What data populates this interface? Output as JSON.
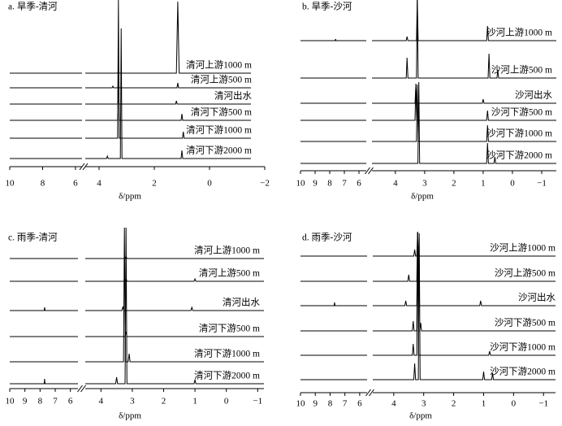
{
  "chart_data": [
    {
      "type": "line",
      "title": "a. 旱季-清河",
      "xlabel": "δ/ppm",
      "color": "#000000",
      "segments": [
        {
          "xlim": [
            10,
            5.6
          ],
          "xticks": [
            10,
            8,
            6
          ]
        },
        {
          "xlim": [
            4.5,
            -2
          ],
          "xticks": [
            4,
            2,
            0,
            {
              "value": -2,
              "label": "−2"
            }
          ]
        }
      ],
      "series": [
        {
          "name": "清河上游1000 m",
          "x": [
            10,
            5.6,
            5.0,
            4.5,
            3.33,
            3.3,
            3.27,
            1.2,
            1.15,
            1.1,
            -1.5
          ],
          "values": [
            0,
            0,
            null,
            0,
            0,
            3,
            0,
            0,
            88,
            0,
            0
          ]
        },
        {
          "name": "清河上游500 m",
          "x": [
            10,
            5.6,
            5.0,
            4.5,
            3.53,
            3.5,
            3.47,
            3.33,
            3.3,
            3.27,
            1.18,
            1.15,
            1.12,
            -1.5
          ],
          "values": [
            0,
            0,
            null,
            0,
            0,
            2,
            0,
            0,
            4,
            0,
            0,
            6,
            0,
            0
          ]
        },
        {
          "name": "清河出水",
          "x": [
            10,
            5.6,
            5.0,
            4.5,
            3.33,
            3.3,
            3.27,
            1.23,
            1.2,
            1.17,
            -1.5
          ],
          "values": [
            0,
            0,
            null,
            0,
            0,
            3,
            0,
            0,
            4,
            0,
            0
          ]
        },
        {
          "name": "清河下游500 m",
          "x": [
            10,
            5.6,
            5.0,
            4.5,
            3.33,
            3.3,
            3.27,
            1.03,
            1.0,
            0.97,
            -1.5
          ],
          "values": [
            0,
            0,
            null,
            0,
            0,
            65,
            0,
            0,
            8,
            0,
            0
          ]
        },
        {
          "name": "清河下游1000 m",
          "x": [
            10,
            5.6,
            5.0,
            4.5,
            3.33,
            3.3,
            3.27,
            0.98,
            0.95,
            0.92,
            -1.5
          ],
          "values": [
            0,
            0,
            null,
            0,
            0,
            170,
            0,
            0,
            8,
            0,
            0
          ]
        },
        {
          "name": "清河下游2000 m",
          "x": [
            10,
            5.6,
            5.0,
            4.5,
            3.73,
            3.7,
            3.67,
            3.23,
            3.2,
            3.17,
            1.03,
            1.0,
            0.97,
            -1.5
          ],
          "values": [
            0,
            0,
            null,
            0,
            0,
            3,
            0,
            0,
            160,
            0,
            0,
            10,
            0,
            0
          ]
        }
      ]
    },
    {
      "type": "line",
      "title": "b. 旱季-沙河",
      "xlabel": "δ/ppm",
      "color": "#000000",
      "segments": [
        {
          "xlim": [
            10,
            5.5
          ],
          "xticks": [
            10,
            9,
            8,
            7,
            6
          ]
        },
        {
          "xlim": [
            4.8,
            -1.5
          ],
          "xticks": [
            4,
            3,
            2,
            1,
            0,
            {
              "value": -1,
              "label": "−1"
            }
          ]
        }
      ],
      "series": [
        {
          "name": "沙河上游1000 m",
          "x": [
            10,
            7.63,
            7.6,
            7.57,
            5.5,
            5.2,
            4.8,
            3.63,
            3.6,
            3.57,
            3.28,
            3.25,
            3.22,
            0.88,
            0.85,
            0.82,
            -1.5
          ],
          "values": [
            0,
            0,
            2,
            0,
            0,
            null,
            0,
            0,
            5,
            0,
            0,
            50,
            0,
            0,
            18,
            0,
            0
          ]
        },
        {
          "name": "沙河上游500 m",
          "x": [
            10,
            5.5,
            5.2,
            4.8,
            3.63,
            3.6,
            3.57,
            3.28,
            3.25,
            3.22,
            0.83,
            0.8,
            0.77,
            0.53,
            0.5,
            0.47,
            -1.5
          ],
          "values": [
            0,
            0,
            null,
            0,
            0,
            25,
            0,
            0,
            96,
            0,
            0,
            30,
            0,
            0,
            10,
            0,
            0
          ]
        },
        {
          "name": "沙河出水",
          "x": [
            10,
            5.5,
            5.2,
            4.8,
            3.33,
            3.3,
            3.27,
            1.03,
            1.0,
            0.97,
            -1.5
          ],
          "values": [
            0,
            0,
            null,
            0,
            0,
            20,
            0,
            0,
            5,
            0,
            0
          ]
        },
        {
          "name": "沙河下游500 m",
          "x": [
            10,
            5.5,
            5.2,
            4.8,
            3.33,
            3.3,
            3.27,
            0.88,
            0.85,
            0.82,
            -1.5
          ],
          "values": [
            0,
            0,
            null,
            0,
            0,
            45,
            0,
            0,
            12,
            0,
            0
          ]
        },
        {
          "name": "沙河下游1000 m",
          "x": [
            10,
            5.5,
            5.2,
            4.8,
            3.28,
            3.25,
            3.22,
            0.88,
            0.85,
            0.82,
            -1.5
          ],
          "values": [
            0,
            0,
            null,
            0,
            0,
            70,
            0,
            0,
            20,
            0,
            0
          ]
        },
        {
          "name": "沙河下游2000 m",
          "x": [
            10,
            5.5,
            5.2,
            4.8,
            3.23,
            3.2,
            3.17,
            0.88,
            0.85,
            0.82,
            0.63,
            0.6,
            0.57,
            -1.5
          ],
          "values": [
            0,
            0,
            null,
            0,
            0,
            100,
            0,
            0,
            25,
            0,
            0,
            8,
            0,
            0
          ]
        }
      ]
    },
    {
      "type": "line",
      "title": "c. 雨季-清河",
      "xlabel": "δ/ppm",
      "color": "#000000",
      "segments": [
        {
          "xlim": [
            10,
            5.5
          ],
          "xticks": [
            10,
            9,
            8,
            7,
            6
          ]
        },
        {
          "xlim": [
            4.5,
            -1.2
          ],
          "xticks": [
            4,
            3,
            2,
            1,
            0,
            {
              "value": -1,
              "label": "−1"
            }
          ]
        }
      ],
      "series": [
        {
          "name": "清河上游1000 m",
          "x": [
            10,
            5.5,
            5.0,
            4.5,
            3.23,
            3.2,
            3.17,
            -1.2
          ],
          "values": [
            0,
            0,
            null,
            0,
            0,
            3,
            0,
            0
          ]
        },
        {
          "name": "清河上游500 m",
          "x": [
            10,
            5.5,
            5.0,
            4.5,
            3.23,
            3.2,
            3.17,
            1.03,
            1.0,
            0.97,
            -1.2
          ],
          "values": [
            0,
            0,
            null,
            0,
            0,
            4,
            0,
            0,
            3,
            0,
            0
          ]
        },
        {
          "name": "清河出水",
          "x": [
            10,
            7.73,
            7.7,
            7.67,
            5.5,
            5.0,
            4.5,
            3.33,
            3.3,
            3.27,
            1.13,
            1.1,
            1.07,
            -1.2
          ],
          "values": [
            0,
            0,
            4,
            0,
            0,
            null,
            0,
            0,
            5,
            0,
            0,
            4,
            0,
            0
          ]
        },
        {
          "name": "清河下游500 m",
          "x": [
            10,
            5.5,
            5.0,
            4.5,
            3.23,
            3.2,
            3.17,
            -1.2
          ],
          "values": [
            0,
            0,
            null,
            0,
            0,
            6,
            0,
            0
          ]
        },
        {
          "name": "清河下游1000 m",
          "x": [
            10,
            5.5,
            5.0,
            4.5,
            3.28,
            3.25,
            3.22,
            3.13,
            3.1,
            3.07,
            -1.2
          ],
          "values": [
            0,
            0,
            null,
            0,
            0,
            165,
            0,
            0,
            10,
            0,
            0
          ]
        },
        {
          "name": "清河下游2000 m",
          "x": [
            10,
            7.73,
            7.7,
            7.67,
            5.5,
            5.0,
            4.5,
            3.53,
            3.5,
            3.47,
            3.23,
            3.2,
            3.17,
            1.03,
            1.0,
            0.97,
            -1.2
          ],
          "values": [
            0,
            0,
            6,
            0,
            0,
            null,
            0,
            0,
            8,
            0,
            0,
            192,
            0,
            0,
            5,
            0,
            0
          ]
        }
      ]
    },
    {
      "type": "line",
      "title": "d. 雨季-沙河",
      "xlabel": "δ/ppm",
      "color": "#000000",
      "segments": [
        {
          "xlim": [
            10,
            5.5
          ],
          "xticks": [
            10,
            9,
            8,
            7,
            6
          ]
        },
        {
          "xlim": [
            4.7,
            -1.4
          ],
          "xticks": [
            4,
            3,
            2,
            1,
            0,
            {
              "value": -1,
              "label": "−1"
            }
          ]
        }
      ],
      "series": [
        {
          "name": "沙河上游1000 m",
          "x": [
            10,
            5.5,
            5.1,
            4.7,
            3.33,
            3.3,
            3.27,
            3.23,
            3.2,
            3.17,
            -1.4
          ],
          "values": [
            0,
            0,
            null,
            0,
            0,
            8,
            0,
            0,
            30,
            0,
            0
          ]
        },
        {
          "name": "沙河上游500 m",
          "x": [
            10,
            5.5,
            5.1,
            4.7,
            3.53,
            3.5,
            3.47,
            3.23,
            3.2,
            3.17,
            -1.4
          ],
          "values": [
            0,
            0,
            null,
            0,
            0,
            8,
            0,
            0,
            60,
            0,
            0
          ]
        },
        {
          "name": "沙河出水",
          "x": [
            10,
            7.73,
            7.7,
            7.67,
            5.5,
            5.1,
            4.7,
            3.63,
            3.6,
            3.57,
            3.23,
            3.2,
            3.17,
            1.13,
            1.1,
            1.07,
            -1.4
          ],
          "values": [
            0,
            0,
            4,
            0,
            0,
            null,
            0,
            0,
            6,
            0,
            0,
            90,
            0,
            0,
            6,
            0,
            0
          ]
        },
        {
          "name": "沙河下游500 m",
          "x": [
            10,
            5.5,
            5.1,
            4.7,
            3.38,
            3.35,
            3.32,
            3.23,
            3.2,
            3.17,
            3.13,
            3.1,
            3.07,
            -1.4
          ],
          "values": [
            0,
            0,
            null,
            0,
            0,
            12,
            0,
            0,
            120,
            0,
            0,
            10,
            0,
            0
          ]
        },
        {
          "name": "沙河下游1000 m",
          "x": [
            10,
            5.5,
            5.1,
            4.7,
            3.38,
            3.35,
            3.32,
            3.23,
            3.2,
            3.17,
            0.83,
            0.8,
            0.77,
            -1.4
          ],
          "values": [
            0,
            0,
            null,
            0,
            0,
            14,
            0,
            0,
            150,
            0,
            0,
            5,
            0,
            0
          ]
        },
        {
          "name": "沙河下游2000 m",
          "x": [
            10,
            5.5,
            5.1,
            4.7,
            3.33,
            3.3,
            3.27,
            3.18,
            3.15,
            3.12,
            1.03,
            1.0,
            0.97,
            0.73,
            0.7,
            0.67,
            -1.4
          ],
          "values": [
            0,
            0,
            null,
            0,
            0,
            20,
            0,
            0,
            180,
            0,
            0,
            10,
            0,
            0,
            8,
            0,
            0
          ]
        }
      ]
    }
  ]
}
